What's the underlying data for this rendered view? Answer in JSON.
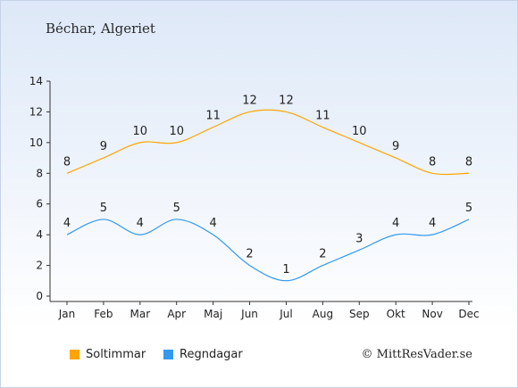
{
  "header": {
    "location": "Béchar, Algeriet"
  },
  "footer": {
    "copyright": "© MittResVader.se"
  },
  "colors": {
    "sun": "#ffa500",
    "rain": "#3399ee",
    "axis": "#333333"
  },
  "chart_data": {
    "type": "line",
    "categories": [
      "Jan",
      "Feb",
      "Mar",
      "Apr",
      "Maj",
      "Jun",
      "Jul",
      "Aug",
      "Sep",
      "Okt",
      "Nov",
      "Dec"
    ],
    "series": [
      {
        "name": "Soltimmar",
        "values": [
          8,
          9,
          10,
          10,
          11,
          12,
          12,
          11,
          10,
          9,
          8,
          8
        ],
        "color": "#ffa500"
      },
      {
        "name": "Regndagar",
        "values": [
          4,
          5,
          4,
          5,
          4,
          2,
          1,
          2,
          3,
          4,
          4,
          5
        ],
        "color": "#3399ee"
      }
    ],
    "yticks": [
      0,
      2,
      4,
      6,
      8,
      10,
      12,
      14
    ],
    "ylim": [
      0,
      14
    ],
    "grid": false,
    "legend": "bottom"
  }
}
